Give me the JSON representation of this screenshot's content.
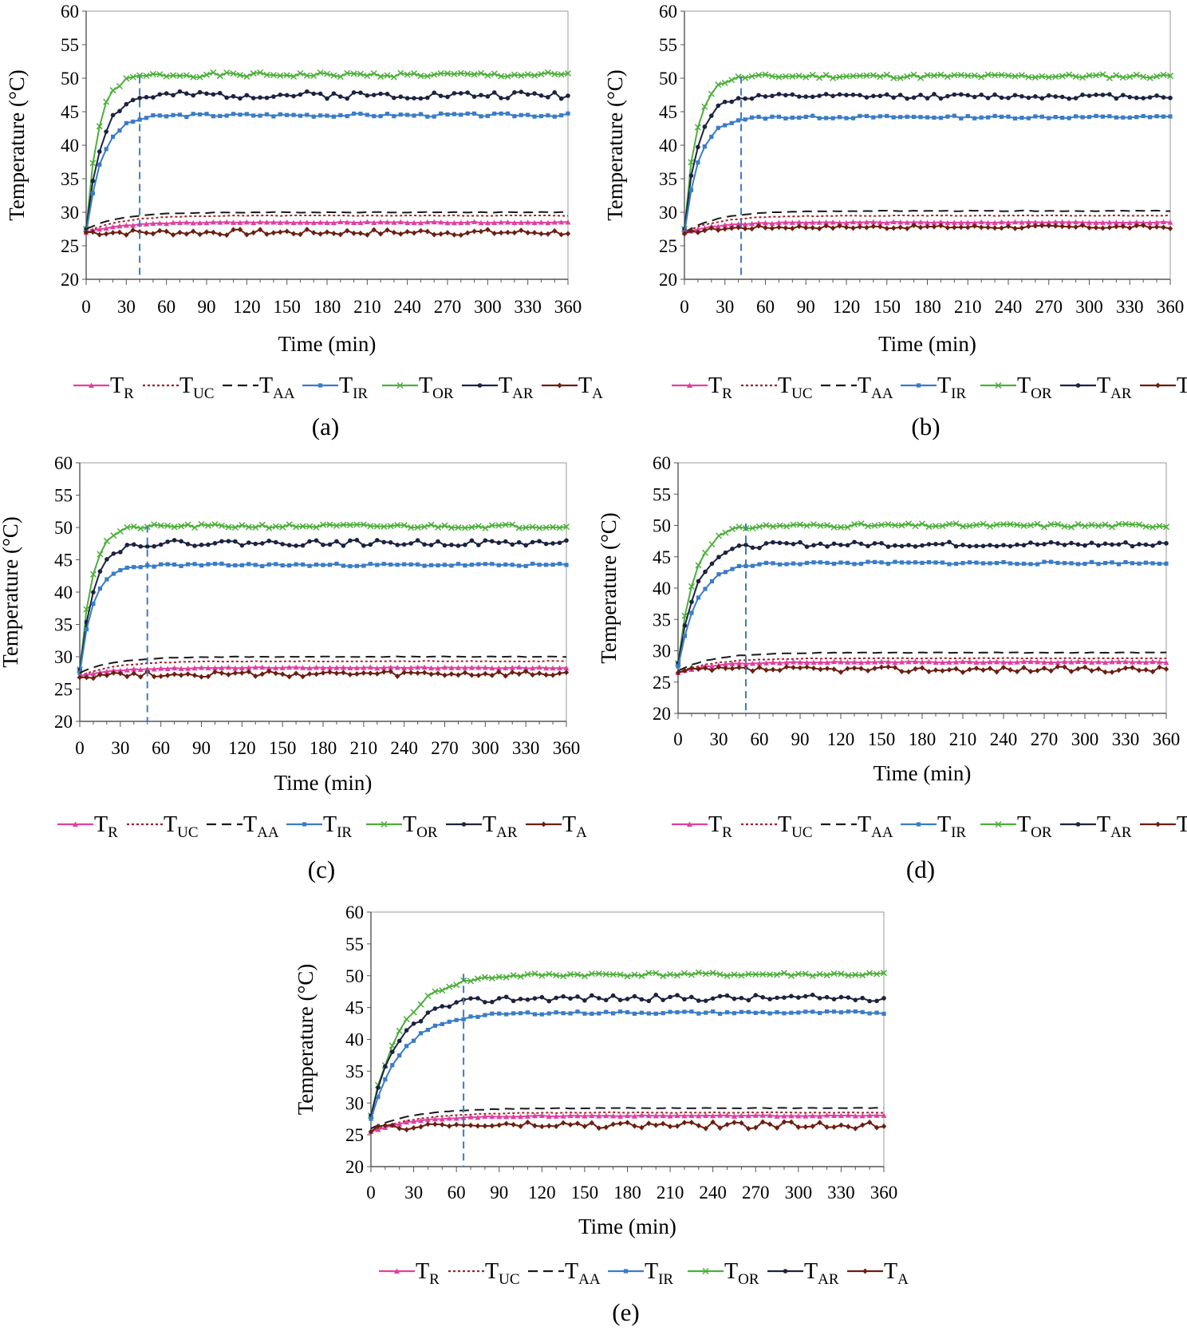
{
  "legend": [
    {
      "key": "TR",
      "base": "T",
      "sub": "R",
      "color": "#E040A0",
      "dash": "",
      "marker": "triangle"
    },
    {
      "key": "TUC",
      "base": "T",
      "sub": "UC",
      "color": "#A0202A",
      "dash": "3 3",
      "marker": "none"
    },
    {
      "key": "TAA",
      "base": "T",
      "sub": "AA",
      "color": "#1A1A1A",
      "dash": "12 7",
      "marker": "none"
    },
    {
      "key": "TIR",
      "base": "T",
      "sub": "IR",
      "color": "#3A7CC8",
      "dash": "",
      "marker": "square"
    },
    {
      "key": "TOR",
      "base": "T",
      "sub": "OR",
      "color": "#4CAF3A",
      "dash": "",
      "marker": "x"
    },
    {
      "key": "TAR",
      "base": "T",
      "sub": "AR",
      "color": "#1C2340",
      "dash": "",
      "marker": "dot"
    },
    {
      "key": "TA",
      "base": "T",
      "sub": "A",
      "color": "#6B1F10",
      "dash": "",
      "marker": "diamond"
    }
  ],
  "vline_color": "#3A7CC8",
  "chart_data": [
    {
      "type": "line",
      "panel_label": "(a)",
      "xlabel": "Time (min)",
      "ylabel": "Temperature (°C)",
      "xlim": [
        0,
        360
      ],
      "ylim": [
        20,
        60
      ],
      "xticks": [
        0,
        30,
        60,
        90,
        120,
        150,
        180,
        210,
        240,
        270,
        300,
        330,
        360
      ],
      "yticks": [
        20,
        25,
        30,
        35,
        40,
        45,
        50,
        55,
        60
      ],
      "grid": false,
      "vline_x": 40,
      "series": [
        {
          "key": "TOR",
          "start": 27.5,
          "plateau": 50.5,
          "tau": 9,
          "amp": 0.35,
          "seed": 1
        },
        {
          "key": "TAR",
          "start": 27.5,
          "plateau": 47.5,
          "tau": 11,
          "amp": 0.55,
          "seed": 2
        },
        {
          "key": "TIR",
          "start": 27.0,
          "plateau": 44.5,
          "tau": 12,
          "amp": 0.25,
          "seed": 3
        },
        {
          "key": "TAA",
          "start": 27.5,
          "plateau": 30.0,
          "tau": 25,
          "amp": 0.05,
          "seed": 4
        },
        {
          "key": "TUC",
          "start": 27.0,
          "plateau": 29.5,
          "tau": 25,
          "amp": 0.05,
          "seed": 5
        },
        {
          "key": "TR",
          "start": 27.0,
          "plateau": 28.5,
          "tau": 25,
          "amp": 0.08,
          "seed": 6
        },
        {
          "key": "TA",
          "start": 27.0,
          "plateau": 27.0,
          "tau": 5,
          "amp": 0.45,
          "seed": 7
        }
      ]
    },
    {
      "type": "line",
      "panel_label": "(b)",
      "xlabel": "Time (min)",
      "ylabel": "Temperature (°C)",
      "xlim": [
        0,
        360
      ],
      "ylim": [
        20,
        60
      ],
      "xticks": [
        0,
        30,
        60,
        90,
        120,
        150,
        180,
        210,
        240,
        270,
        300,
        330,
        360
      ],
      "yticks": [
        20,
        25,
        30,
        35,
        40,
        45,
        50,
        55,
        60
      ],
      "grid": false,
      "vline_x": 42,
      "series": [
        {
          "key": "TOR",
          "start": 27.5,
          "plateau": 50.3,
          "tau": 9,
          "amp": 0.3,
          "seed": 11
        },
        {
          "key": "TAR",
          "start": 27.5,
          "plateau": 47.3,
          "tau": 10,
          "amp": 0.35,
          "seed": 12
        },
        {
          "key": "TIR",
          "start": 27.0,
          "plateau": 44.2,
          "tau": 11,
          "amp": 0.2,
          "seed": 13
        },
        {
          "key": "TAA",
          "start": 27.0,
          "plateau": 30.2,
          "tau": 25,
          "amp": 0.05,
          "seed": 14
        },
        {
          "key": "TUC",
          "start": 27.0,
          "plateau": 29.5,
          "tau": 25,
          "amp": 0.05,
          "seed": 15
        },
        {
          "key": "TR",
          "start": 27.0,
          "plateau": 28.5,
          "tau": 25,
          "amp": 0.08,
          "seed": 16
        },
        {
          "key": "TA",
          "start": 26.8,
          "plateau": 27.8,
          "tau": 20,
          "amp": 0.25,
          "seed": 17
        }
      ]
    },
    {
      "type": "line",
      "panel_label": "(c)",
      "xlabel": "Time (min)",
      "ylabel": "Temperature (°C)",
      "xlim": [
        0,
        360
      ],
      "ylim": [
        20,
        60
      ],
      "xticks": [
        0,
        30,
        60,
        90,
        120,
        150,
        180,
        210,
        240,
        270,
        300,
        330,
        360
      ],
      "yticks": [
        20,
        25,
        30,
        35,
        40,
        45,
        50,
        55,
        60
      ],
      "grid": false,
      "vline_x": 50,
      "series": [
        {
          "key": "TOR",
          "start": 28.0,
          "plateau": 50.2,
          "tau": 9,
          "amp": 0.3,
          "seed": 21
        },
        {
          "key": "TAR",
          "start": 28.0,
          "plateau": 47.6,
          "tau": 10,
          "amp": 0.45,
          "seed": 22
        },
        {
          "key": "TIR",
          "start": 27.5,
          "plateau": 44.2,
          "tau": 10,
          "amp": 0.2,
          "seed": 23
        },
        {
          "key": "TAA",
          "start": 27.5,
          "plateau": 30.0,
          "tau": 25,
          "amp": 0.05,
          "seed": 24
        },
        {
          "key": "TUC",
          "start": 27.0,
          "plateau": 29.3,
          "tau": 25,
          "amp": 0.05,
          "seed": 25
        },
        {
          "key": "TR",
          "start": 27.0,
          "plateau": 28.3,
          "tau": 25,
          "amp": 0.08,
          "seed": 26
        },
        {
          "key": "TA",
          "start": 26.8,
          "plateau": 27.3,
          "tau": 10,
          "amp": 0.45,
          "seed": 27
        }
      ]
    },
    {
      "type": "line",
      "panel_label": "(d)",
      "xlabel": "Time (min)",
      "ylabel": "Temperature (°C)",
      "xlim": [
        0,
        360
      ],
      "ylim": [
        20,
        60
      ],
      "xticks": [
        0,
        30,
        60,
        90,
        120,
        150,
        180,
        210,
        240,
        270,
        300,
        330,
        360
      ],
      "yticks": [
        20,
        25,
        30,
        35,
        40,
        45,
        50,
        55,
        60
      ],
      "grid": false,
      "vline_x": 50,
      "series": [
        {
          "key": "TOR",
          "start": 28.0,
          "plateau": 50.0,
          "tau": 12,
          "amp": 0.3,
          "seed": 31
        },
        {
          "key": "TAR",
          "start": 28.0,
          "plateau": 47.0,
          "tau": 13,
          "amp": 0.4,
          "seed": 32
        },
        {
          "key": "TIR",
          "start": 27.5,
          "plateau": 44.0,
          "tau": 14,
          "amp": 0.2,
          "seed": 33
        },
        {
          "key": "TAA",
          "start": 26.8,
          "plateau": 29.7,
          "tau": 25,
          "amp": 0.05,
          "seed": 34
        },
        {
          "key": "TUC",
          "start": 26.5,
          "plateau": 28.8,
          "tau": 25,
          "amp": 0.05,
          "seed": 35
        },
        {
          "key": "TR",
          "start": 26.5,
          "plateau": 28.2,
          "tau": 25,
          "amp": 0.08,
          "seed": 36
        },
        {
          "key": "TA",
          "start": 26.5,
          "plateau": 27.0,
          "tau": 10,
          "amp": 0.45,
          "seed": 37
        }
      ]
    },
    {
      "type": "line",
      "panel_label": "(e)",
      "xlabel": "Time (min)",
      "ylabel": "Temperature (°C)",
      "xlim": [
        0,
        360
      ],
      "ylim": [
        20,
        60
      ],
      "xticks": [
        0,
        30,
        60,
        90,
        120,
        150,
        180,
        210,
        240,
        270,
        300,
        330,
        360
      ],
      "yticks": [
        20,
        25,
        30,
        35,
        40,
        45,
        50,
        55,
        60
      ],
      "grid": false,
      "vline_x": 65,
      "series": [
        {
          "key": "TOR",
          "start": 28.0,
          "plateau": 50.2,
          "tau": 22,
          "amp": 0.3,
          "seed": 41
        },
        {
          "key": "TAR",
          "start": 28.0,
          "plateau": 46.5,
          "tau": 20,
          "amp": 0.5,
          "seed": 42
        },
        {
          "key": "TIR",
          "start": 27.5,
          "plateau": 44.2,
          "tau": 22,
          "amp": 0.2,
          "seed": 43
        },
        {
          "key": "TAA",
          "start": 26.0,
          "plateau": 29.2,
          "tau": 30,
          "amp": 0.05,
          "seed": 44
        },
        {
          "key": "TUC",
          "start": 25.5,
          "plateau": 28.5,
          "tau": 30,
          "amp": 0.05,
          "seed": 45
        },
        {
          "key": "TR",
          "start": 25.5,
          "plateau": 28.0,
          "tau": 30,
          "amp": 0.08,
          "seed": 46
        },
        {
          "key": "TA",
          "start": 25.5,
          "plateau": 26.5,
          "tau": 15,
          "amp": 0.55,
          "seed": 47
        }
      ]
    }
  ]
}
